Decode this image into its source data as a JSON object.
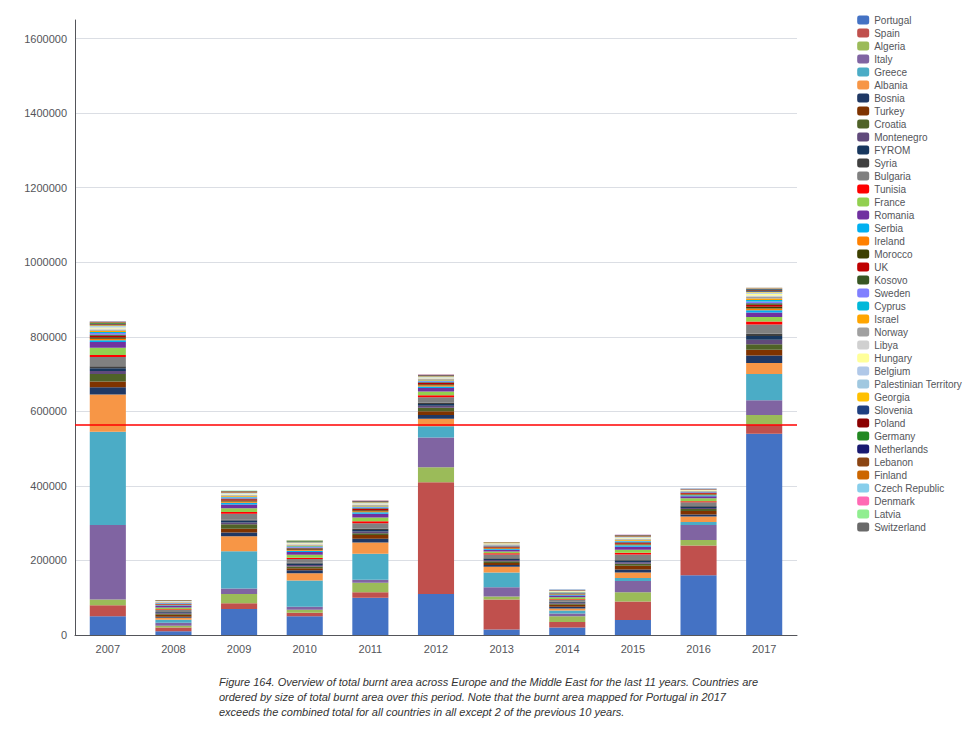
{
  "chart_data": {
    "type": "bar",
    "stacked": true,
    "grid": true,
    "legend": "right",
    "caption": "Figure 164. Overview of total burnt area across Europe and the Middle East for the last 11 years. Countries are\nordered by size of total burnt area over this period. Note that the burnt area mapped for Portugal in 2017\nexceeds the combined total for all countries in all except 2 of the previous 10 years.",
    "categories": [
      "2007",
      "2008",
      "2009",
      "2010",
      "2011",
      "2012",
      "2013",
      "2014",
      "2015",
      "2016",
      "2017"
    ],
    "ylim": [
      0,
      1650000
    ],
    "yticks": [
      0,
      200000,
      400000,
      600000,
      800000,
      1000000,
      1200000,
      1400000,
      1600000
    ],
    "reference_line": {
      "value": 565000,
      "color": "#FF0000"
    },
    "series": [
      {
        "name": "Portugal",
        "color": "#4472C4",
        "values": [
          50000,
          10000,
          70000,
          50000,
          100000,
          110000,
          15000,
          20000,
          40000,
          160000,
          540000
        ]
      },
      {
        "name": "Spain",
        "color": "#C0504D",
        "values": [
          30000,
          10000,
          15000,
          10000,
          15000,
          300000,
          80000,
          15000,
          50000,
          80000,
          25000
        ]
      },
      {
        "name": "Algeria",
        "color": "#9BBB59",
        "values": [
          15000,
          5000,
          25000,
          8000,
          25000,
          40000,
          8000,
          15000,
          25000,
          15000,
          25000
        ]
      },
      {
        "name": "Italy",
        "color": "#8064A2",
        "values": [
          200000,
          8000,
          15000,
          8000,
          8000,
          80000,
          25000,
          8000,
          30000,
          40000,
          40000
        ]
      },
      {
        "name": "Greece",
        "color": "#4BACC6",
        "values": [
          250000,
          8000,
          100000,
          70000,
          70000,
          30000,
          40000,
          8000,
          8000,
          8000,
          70000
        ]
      },
      {
        "name": "Albania",
        "color": "#F79646",
        "values": [
          100000,
          5000,
          40000,
          20000,
          30000,
          20000,
          15000,
          5000,
          15000,
          15000,
          30000
        ]
      },
      {
        "name": "Bosnia",
        "color": "#1F3864",
        "values": [
          20000,
          3000,
          10000,
          8000,
          10000,
          10000,
          5000,
          5000,
          8000,
          5000,
          20000
        ]
      },
      {
        "name": "Turkey",
        "color": "#7F3300",
        "values": [
          15000,
          5000,
          10000,
          5000,
          10000,
          10000,
          5000,
          5000,
          10000,
          10000,
          15000
        ]
      },
      {
        "name": "Croatia",
        "color": "#4F6228",
        "values": [
          20000,
          3000,
          12000,
          5000,
          5000,
          10000,
          5000,
          3000,
          5000,
          5000,
          15000
        ]
      },
      {
        "name": "Montenegro",
        "color": "#604A7B",
        "values": [
          8000,
          2000,
          5000,
          4000,
          5000,
          5000,
          3000,
          2000,
          4000,
          3000,
          12000
        ]
      },
      {
        "name": "FYROM",
        "color": "#17375E",
        "values": [
          8000,
          2000,
          5000,
          4000,
          4000,
          5000,
          3000,
          2000,
          4000,
          3000,
          10000
        ]
      },
      {
        "name": "Syria",
        "color": "#404040",
        "values": [
          5000,
          1000,
          3000,
          2000,
          3000,
          3000,
          2000,
          1000,
          2000,
          2000,
          6000
        ]
      },
      {
        "name": "Bulgaria",
        "color": "#808080",
        "values": [
          25000,
          5000,
          15000,
          10000,
          15000,
          15000,
          10000,
          5000,
          15000,
          10000,
          25000
        ]
      },
      {
        "name": "Tunisia",
        "color": "#FF0000",
        "values": [
          5000,
          2000,
          5000,
          3000,
          5000,
          5000,
          3000,
          2000,
          5000,
          3000,
          8000
        ]
      },
      {
        "name": "France",
        "color": "#92D050",
        "values": [
          20000,
          5000,
          10000,
          8000,
          10000,
          10000,
          5000,
          5000,
          8000,
          8000,
          12000
        ]
      },
      {
        "name": "Romania",
        "color": "#7030A0",
        "values": [
          15000,
          4000,
          10000,
          8000,
          10000,
          10000,
          5000,
          5000,
          8000,
          5000,
          12000
        ]
      },
      {
        "name": "Serbia",
        "color": "#00B0F0",
        "values": [
          5000,
          2000,
          5000,
          3000,
          4000,
          4000,
          2000,
          2000,
          4000,
          3000,
          6000
        ]
      },
      {
        "name": "Ireland",
        "color": "#FF8000",
        "values": [
          4000,
          1000,
          3000,
          2000,
          3000,
          3000,
          2000,
          1000,
          2000,
          2000,
          5000
        ]
      },
      {
        "name": "Morocco",
        "color": "#3D4000",
        "values": [
          4000,
          1000,
          3000,
          2000,
          3000,
          3000,
          2000,
          1000,
          2000,
          2000,
          5000
        ]
      },
      {
        "name": "UK",
        "color": "#BF0000",
        "values": [
          4000,
          1000,
          3000,
          2000,
          3000,
          3000,
          2000,
          1000,
          2000,
          2000,
          5000
        ]
      },
      {
        "name": "Kosovo",
        "color": "#375623",
        "values": [
          3000,
          1000,
          2000,
          2000,
          2000,
          2000,
          1000,
          1000,
          2000,
          1000,
          4000
        ]
      },
      {
        "name": "Sweden",
        "color": "#7F7FFF",
        "values": [
          4000,
          1000,
          3000,
          2000,
          3000,
          3000,
          2000,
          1000,
          2000,
          2000,
          5000
        ]
      },
      {
        "name": "Cyprus",
        "color": "#00B8D9",
        "values": [
          3000,
          1000,
          2000,
          2000,
          2000,
          2000,
          1000,
          1000,
          2000,
          1000,
          4000
        ]
      },
      {
        "name": "Israel",
        "color": "#FFA500",
        "values": [
          3000,
          1000,
          2000,
          2000,
          2000,
          2000,
          1000,
          1000,
          2000,
          1000,
          4000
        ]
      },
      {
        "name": "Norway",
        "color": "#A0A0A0",
        "values": [
          3000,
          1000,
          2000,
          2000,
          2000,
          2000,
          1000,
          1000,
          2000,
          1000,
          4000
        ]
      },
      {
        "name": "Libya",
        "color": "#D0D0D0",
        "values": [
          3000,
          1000,
          2000,
          2000,
          2000,
          2000,
          1000,
          1000,
          2000,
          1000,
          4000
        ]
      },
      {
        "name": "Hungary",
        "color": "#FFFF99",
        "values": [
          3000,
          1000,
          2000,
          2000,
          2000,
          2000,
          1000,
          1000,
          2000,
          1000,
          4000
        ]
      },
      {
        "name": "Belgium",
        "color": "#B0C8E8",
        "values": [
          2000,
          500,
          1000,
          1000,
          1000,
          1000,
          500,
          500,
          1000,
          500,
          2000
        ]
      },
      {
        "name": "Palestinian Territory",
        "color": "#A0C8E0",
        "values": [
          2000,
          500,
          1000,
          1000,
          1000,
          1000,
          500,
          500,
          1000,
          500,
          2000
        ]
      },
      {
        "name": "Georgia",
        "color": "#FFC000",
        "values": [
          2000,
          500,
          1000,
          1000,
          1000,
          1000,
          500,
          500,
          1000,
          500,
          2000
        ]
      },
      {
        "name": "Slovenia",
        "color": "#1E3F80",
        "values": [
          2000,
          500,
          1000,
          1000,
          1000,
          1000,
          500,
          500,
          1000,
          500,
          2000
        ]
      },
      {
        "name": "Poland",
        "color": "#8B0000",
        "values": [
          2000,
          500,
          1000,
          1000,
          1000,
          1000,
          500,
          500,
          1000,
          500,
          2000
        ]
      },
      {
        "name": "Germany",
        "color": "#228822",
        "values": [
          2000,
          500,
          1000,
          1000,
          1000,
          1000,
          500,
          500,
          1000,
          500,
          2000
        ]
      },
      {
        "name": "Netherlands",
        "color": "#191970",
        "values": [
          1000,
          200,
          500,
          500,
          500,
          500,
          200,
          200,
          500,
          200,
          1000
        ]
      },
      {
        "name": "Lebanon",
        "color": "#8B4513",
        "values": [
          1000,
          200,
          500,
          500,
          500,
          500,
          200,
          200,
          500,
          200,
          1000
        ]
      },
      {
        "name": "Finland",
        "color": "#CC6600",
        "values": [
          1000,
          200,
          500,
          500,
          500,
          500,
          200,
          200,
          500,
          200,
          1000
        ]
      },
      {
        "name": "Czech Republic",
        "color": "#87CEEB",
        "values": [
          1000,
          200,
          500,
          500,
          500,
          500,
          200,
          200,
          500,
          200,
          1000
        ]
      },
      {
        "name": "Denmark",
        "color": "#FF69B4",
        "values": [
          500,
          100,
          300,
          300,
          300,
          300,
          100,
          100,
          300,
          100,
          500
        ]
      },
      {
        "name": "Latvia",
        "color": "#90EE90",
        "values": [
          500,
          100,
          300,
          300,
          300,
          300,
          100,
          100,
          300,
          100,
          500
        ]
      },
      {
        "name": "Switzerland",
        "color": "#696969",
        "values": [
          300,
          100,
          200,
          200,
          200,
          200,
          100,
          100,
          200,
          100,
          300
        ]
      }
    ]
  }
}
